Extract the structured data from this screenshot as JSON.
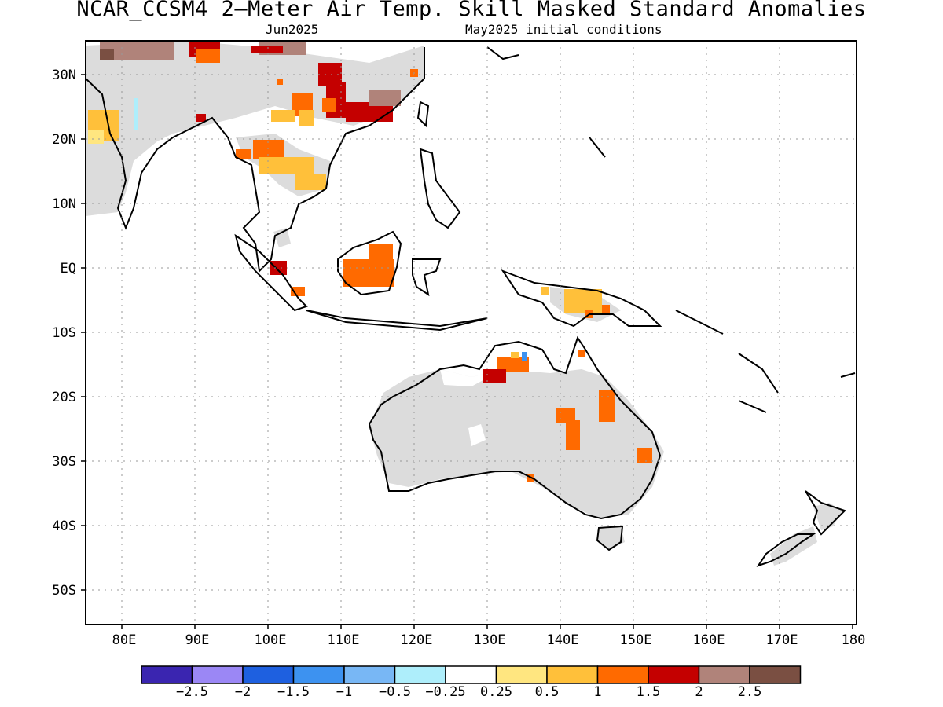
{
  "title": "NCAR_CCSM4 2—Meter Air Temp. Skill Masked Standard Anomalies",
  "subtitle_left": "Jun2025",
  "subtitle_right": "May2025 initial conditions",
  "lat_labels": [
    "30N",
    "20N",
    "10N",
    "EQ",
    "10S",
    "20S",
    "30S",
    "40S",
    "50S"
  ],
  "lon_labels": [
    "80E",
    "90E",
    "100E",
    "110E",
    "120E",
    "130E",
    "140E",
    "150E",
    "160E",
    "170E",
    "180"
  ],
  "colorbar": {
    "colors": [
      "#3a25b0",
      "#9b87f5",
      "#1e60e0",
      "#3d92f0",
      "#78b7f5",
      "#aeeefb",
      "#ffffff",
      "#ffe680",
      "#ffc03a",
      "#ff6a00",
      "#c40000",
      "#b0837a",
      "#7a4f42"
    ],
    "labels": [
      "−2.5",
      "−2",
      "−1.5",
      "−1",
      "−0.5",
      "−0.25",
      "0.25",
      "0.5",
      "1",
      "1.5",
      "2",
      "2.5"
    ]
  },
  "legend_colors": {
    "no_skill_mask": "#dcdcdc",
    "coastline": "#000000"
  }
}
